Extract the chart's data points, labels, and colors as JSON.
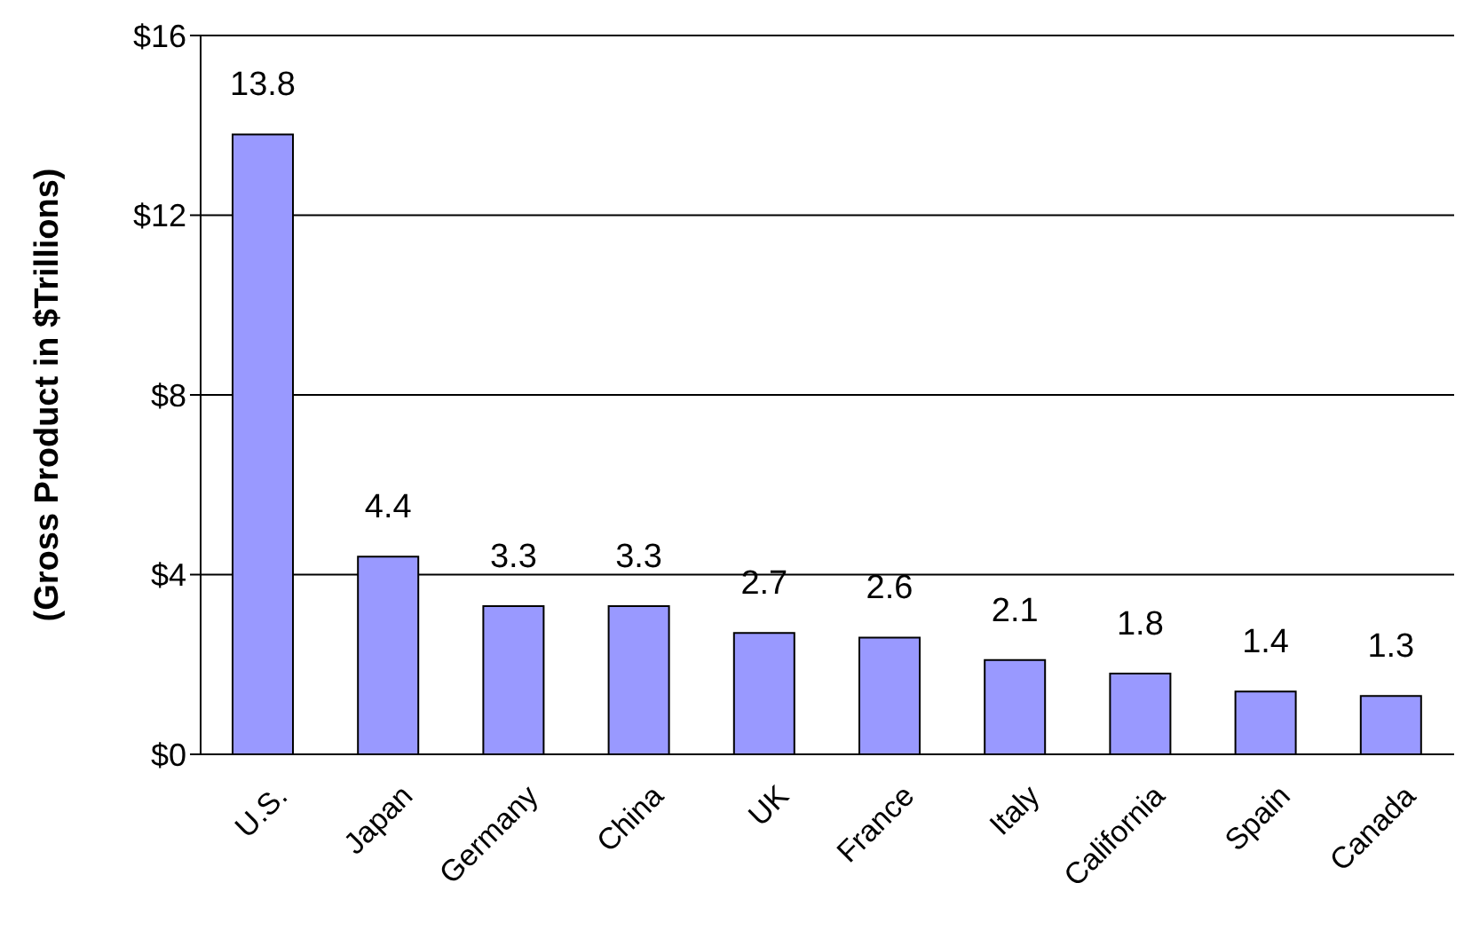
{
  "chart_data": {
    "type": "bar",
    "ylabel": "(Gross Product in $Trillions)",
    "categories": [
      "U.S.",
      "Japan",
      "Germany",
      "China",
      "UK",
      "France",
      "Italy",
      "California",
      "Spain",
      "Canada"
    ],
    "values": [
      13.8,
      4.4,
      3.3,
      3.3,
      2.7,
      2.6,
      2.1,
      1.8,
      1.4,
      1.3
    ],
    "color": "#9999ff",
    "ylim": [
      0,
      16
    ],
    "yticks": [
      {
        "value": 0,
        "label": "$0"
      },
      {
        "value": 4,
        "label": "$4"
      },
      {
        "value": 8,
        "label": "$8"
      },
      {
        "value": 12,
        "label": "$12"
      },
      {
        "value": 16,
        "label": "$16"
      }
    ],
    "grid": "y",
    "data_labels": true
  }
}
